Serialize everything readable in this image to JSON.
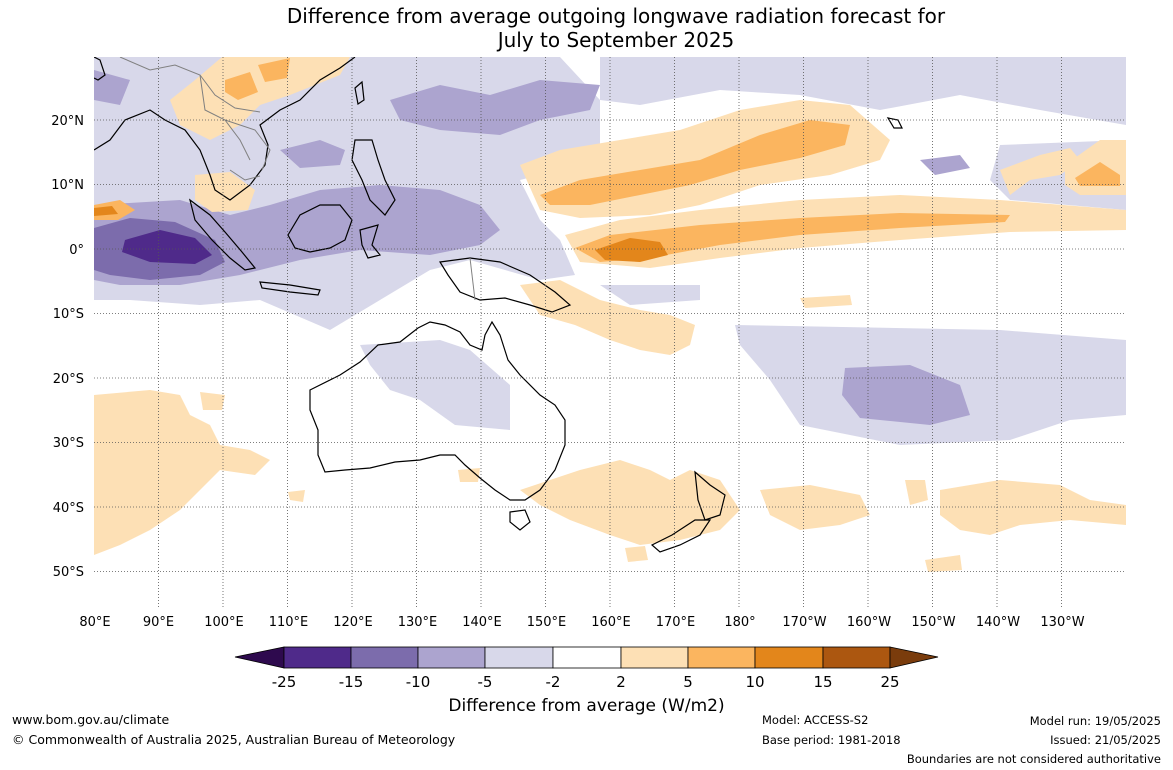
{
  "title_line1": "Difference from average outgoing longwave radiation forecast for",
  "title_line2": "July to September 2025",
  "map": {
    "lon_labels": [
      "80°E",
      "90°E",
      "100°E",
      "110°E",
      "120°E",
      "130°E",
      "140°E",
      "150°E",
      "160°E",
      "170°E",
      "180°",
      "170°W",
      "160°W",
      "150°W",
      "140°W",
      "130°W"
    ],
    "lat_labels": [
      "20°N",
      "10°N",
      "0°",
      "10°S",
      "20°S",
      "30°S",
      "40°S",
      "50°S"
    ],
    "lon_range": [
      80,
      240
    ],
    "lat_range": [
      -55,
      30
    ],
    "gridlines": "dotted",
    "colors": {
      "land_outline": "#000000",
      "country_borders": "#808080",
      "ocean_neutral": "#ffffff"
    }
  },
  "colorbar": {
    "ticks": [
      "-25",
      "-15",
      "-10",
      "-5",
      "-2",
      "2",
      "5",
      "10",
      "15",
      "25"
    ],
    "colors": [
      "#2e0a4e",
      "#4f2a8a",
      "#7c6cac",
      "#aca4cf",
      "#d8d8ea",
      "#ffffff",
      "#fde0b5",
      "#fbb55f",
      "#e3861b",
      "#ac5710",
      "#7a3c0c"
    ],
    "title": "Difference from average (W/m2)"
  },
  "footer": {
    "website": "www.bom.gov.au/climate",
    "copyright": "© Commonwealth of Australia 2025, Australian Bureau of Meteorology",
    "model": "Model: ACCESS-S2",
    "base_period": "Base period: 1981-2018",
    "model_run": "Model run: 19/05/2025",
    "issued": "Issued: 21/05/2025",
    "disclaimer": "Boundaries are not considered authoritative"
  }
}
